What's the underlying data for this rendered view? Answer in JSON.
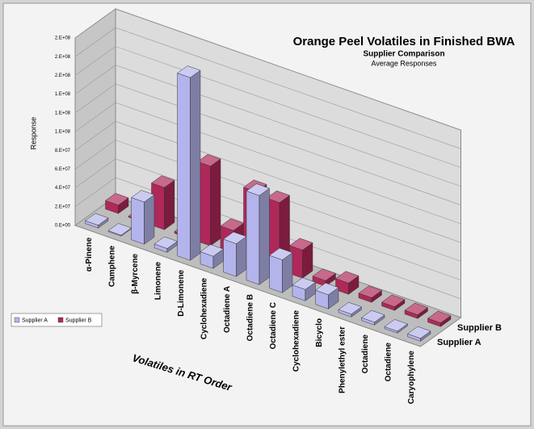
{
  "chart_data": {
    "type": "bar3d",
    "title": "Orange Peel Volatiles in Finished BWA",
    "subtitle": "Supplier Comparison",
    "subtitle2": "Average Responses",
    "x_label": "Volatiles in RT Order",
    "y_label": "Response",
    "categories": [
      "α-Pinene",
      "Camphene",
      "β-Myrcene",
      "Limonene",
      "D-Limonene",
      "Cyclohexadiene",
      "Octadiene A",
      "Octadiene B",
      "Octadiene C",
      "Cyclohexadiene",
      "Bicyclo",
      "Phenylethyl ester",
      "Octadiene",
      "Octadiene",
      "Caryophylene"
    ],
    "series": [
      {
        "name": "Supplier A",
        "color": "#b4b4ec",
        "values": [
          3000000,
          1000000,
          45000000,
          4000000,
          195000000,
          13000000,
          35000000,
          95000000,
          35000000,
          12000000,
          15000000,
          3000000,
          3000000,
          2000000,
          3000000
        ]
      },
      {
        "name": "Supplier B",
        "color": "#b0285a",
        "values": [
          9000000,
          1000000,
          45000000,
          2000000,
          85000000,
          25000000,
          75000000,
          72000000,
          30000000,
          6000000,
          12000000,
          5000000,
          4000000,
          4000000,
          4000000
        ]
      }
    ],
    "ylim": [
      0,
      200000000
    ],
    "yticks": [
      {
        "value": 0,
        "label": "0.E+00"
      },
      {
        "value": 20000000,
        "label": "2.E+07"
      },
      {
        "value": 40000000,
        "label": "4.E+07"
      },
      {
        "value": 60000000,
        "label": "6.E+07"
      },
      {
        "value": 80000000,
        "label": "8.E+07"
      },
      {
        "value": 100000000,
        "label": "1.E+08"
      },
      {
        "value": 120000000,
        "label": "1.E+08"
      },
      {
        "value": 140000000,
        "label": "1.E+08"
      },
      {
        "value": 160000000,
        "label": "2.E+08"
      },
      {
        "value": 180000000,
        "label": "2.E+08"
      },
      {
        "value": 200000000,
        "label": "2.E+08"
      }
    ],
    "grid": true,
    "legend": "bottom-left"
  }
}
